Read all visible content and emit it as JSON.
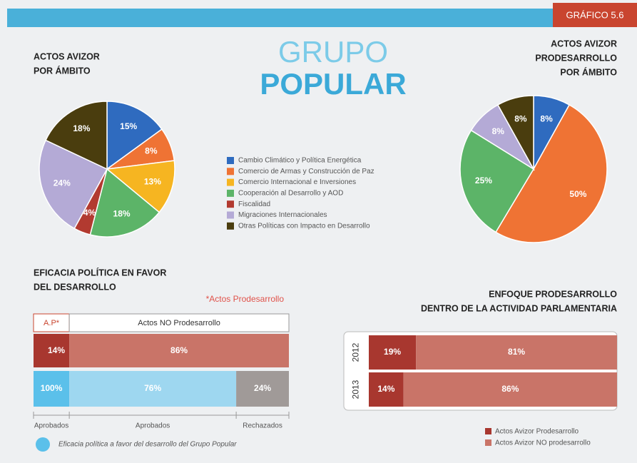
{
  "header": {
    "badge": "GRÁFICO 5.6",
    "title_line1": "GRUPO",
    "title_line2": "POPULAR"
  },
  "chart_data": [
    {
      "type": "pie",
      "title": [
        "ACTOS AVIZOR",
        "POR ÁMBITO"
      ],
      "categories": [
        "Cambio Climático y Política Energética",
        "Comercio de Armas y Construcción de Paz",
        "Comercio Internacional e Inversiones",
        "Cooperación al Desarrollo y AOD",
        "Fiscalidad",
        "Migraciones Internacionales",
        "Otras Políticas con Impacto en Desarrollo"
      ],
      "values": [
        15,
        8,
        13,
        18,
        4,
        24,
        18
      ],
      "value_labels": [
        "15%",
        "8%",
        "13%",
        "18%",
        "4%",
        "24%",
        "18%"
      ],
      "colors": [
        "#2f6bbf",
        "#ef7334",
        "#f6b521",
        "#5cb468",
        "#b23a30",
        "#b4aad6",
        "#4a3d0e"
      ]
    },
    {
      "type": "pie",
      "title": [
        "ACTOS AVIZOR",
        "PRODESARROLLO",
        "POR ÁMBITO"
      ],
      "values": [
        8,
        50,
        25,
        8,
        8
      ],
      "value_labels": [
        "8%",
        "50%",
        "25%",
        "8%",
        "8%"
      ],
      "colors": [
        "#2f6bbf",
        "#ef7334",
        "#5cb468",
        "#b4aad6",
        "#4a3d0e"
      ]
    },
    {
      "type": "split_bar",
      "title": [
        "EFICACIA POLÍTICA EN FAVOR",
        "DEL DESARROLLO"
      ],
      "note": "*Actos Prodesarrollo",
      "columns": [
        "A.P*",
        "Actos NO Prodesarrollo"
      ],
      "rows": [
        {
          "values": [
            14,
            86
          ],
          "value_labels": [
            "14%",
            "86%"
          ],
          "colors": [
            "#a8372f",
            "#c97468"
          ]
        },
        {
          "values": [
            100,
            76,
            24
          ],
          "value_labels": [
            "100%",
            "76%",
            "24%"
          ],
          "colors": [
            "#5bc0ea",
            "#9ed7f0",
            "#a09a98"
          ],
          "labels": [
            "Aprobados",
            "Aprobados",
            "Rechazados"
          ]
        }
      ],
      "footnote": "Eficacia política a favor del desarrollo del Grupo Popular"
    },
    {
      "type": "stacked_barh",
      "title": [
        "ENFOQUE PRODESARROLLO",
        "DENTRO DE LA ACTIVIDAD PARLAMENTARIA"
      ],
      "categories": [
        "2012",
        "2013"
      ],
      "series": [
        {
          "name": "Actos Avizor Prodesarrollo",
          "color": "#a8372f",
          "values": [
            19,
            14
          ],
          "value_labels": [
            "19%",
            "14%"
          ]
        },
        {
          "name": "Actos Avizor NO prodesarrollo",
          "color": "#c97468",
          "values": [
            81,
            86
          ],
          "value_labels": [
            "81%",
            "86%"
          ]
        }
      ]
    }
  ]
}
